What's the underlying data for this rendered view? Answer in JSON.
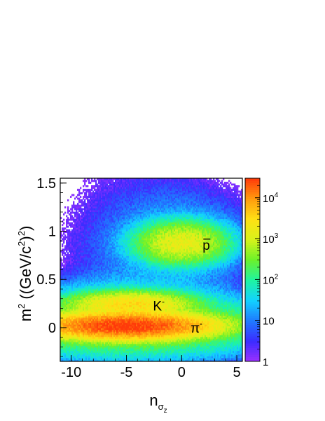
{
  "chart_data": {
    "type": "heatmap",
    "title": "",
    "xlabel": {
      "base": "n",
      "sub": "σ",
      "subsub": "z"
    },
    "ylabel": {
      "main": "m",
      "exp": "2",
      "open": " ((GeV/c",
      "exp2": "2",
      "close": ")",
      "exp3": "2",
      "end": ")"
    },
    "xlim": [
      -11,
      5.5
    ],
    "ylim": [
      -0.35,
      1.55
    ],
    "x_ticks": [
      {
        "value": -10,
        "label": "-10"
      },
      {
        "value": -5,
        "label": "-5"
      },
      {
        "value": 0,
        "label": "0"
      },
      {
        "value": 5,
        "label": "5"
      }
    ],
    "y_ticks": [
      {
        "value": 0,
        "label": "0"
      },
      {
        "value": 0.5,
        "label": "0.5"
      },
      {
        "value": 1,
        "label": "1"
      },
      {
        "value": 1.5,
        "label": "1.5"
      }
    ],
    "colorbar": {
      "scale": "log",
      "range": [
        1,
        30000
      ],
      "ticks": [
        {
          "value": 1,
          "base": "1",
          "exp": ""
        },
        {
          "value": 10,
          "base": "10",
          "exp": ""
        },
        {
          "value": 100,
          "base": "10",
          "exp": "2"
        },
        {
          "value": 1000,
          "base": "10",
          "exp": "3"
        },
        {
          "value": 10000,
          "base": "10",
          "exp": "4"
        }
      ],
      "colors": [
        "#9b30ff",
        "#3b2cff",
        "#1f7aff",
        "#12d2ff",
        "#1ff4a0",
        "#6cf22a",
        "#d8f21a",
        "#ffe014",
        "#ff9a0e",
        "#ff3a0a"
      ]
    },
    "clusters": [
      {
        "label": "π",
        "sup": "-",
        "label_x": 0.8,
        "label_y": 0.0,
        "center_x": -5.0,
        "center_y": 0.02,
        "sigma_x": 3.4,
        "sigma_y": 0.06,
        "peak": 30000
      },
      {
        "label": "K",
        "sup": "-",
        "label_x": -2.6,
        "label_y": 0.23,
        "center_x": -4.6,
        "center_y": 0.245,
        "sigma_x": 2.5,
        "sigma_y": 0.06,
        "peak": 3000
      },
      {
        "label": "p",
        "sup": "",
        "overline": true,
        "label_x": 1.9,
        "label_y": 0.86,
        "center_x": 0.0,
        "center_y": 0.88,
        "sigma_x": 1.9,
        "sigma_y": 0.1,
        "peak": 1500
      }
    ]
  }
}
